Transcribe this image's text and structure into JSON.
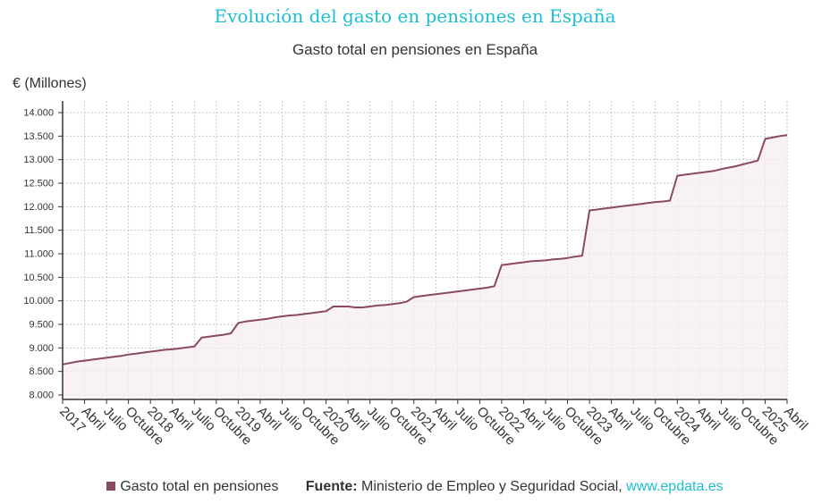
{
  "title": "Evolución del gasto en pensiones en España",
  "colors": {
    "title": "#1bbfd0",
    "series": "#8b4a5c",
    "area": "#f7eef1",
    "grid": "#c8c8c8",
    "link": "#1bbfd0"
  },
  "legend": {
    "label": "Gasto total en pensiones"
  },
  "source": {
    "label": "Fuente:",
    "text": "Ministerio de Empleo y Seguridad Social,",
    "link": "www.epdata.es"
  },
  "chart_data": {
    "type": "area",
    "title": "Gasto total en pensiones en España",
    "ylabel": "€ (Millones)",
    "xlabel": "",
    "ylim": [
      8000,
      14000
    ],
    "yticks": [
      8000,
      8500,
      9000,
      9500,
      10000,
      10500,
      11000,
      11500,
      12000,
      12500,
      13000,
      13500,
      14000
    ],
    "ytick_labels": [
      "8.000",
      "8.500",
      "9.000",
      "9.500",
      "10.000",
      "10.500",
      "11.000",
      "11.500",
      "12.000",
      "12.500",
      "13.000",
      "13.500",
      "14.000"
    ],
    "xticks": [
      "2017",
      "Abril",
      "Julio",
      "Octubre",
      "2018",
      "Abril",
      "Julio",
      "Octubre",
      "2019",
      "Abril",
      "Julio",
      "Octubre",
      "2020",
      "Abril",
      "Julio",
      "Octubre",
      "2021",
      "Abril",
      "Julio",
      "Octubre",
      "2022",
      "Abril",
      "Julio",
      "Octubre",
      "2023",
      "Abril",
      "Julio",
      "Octubre",
      "2024",
      "Abril",
      "Julio",
      "Octubre",
      "2025",
      "Abril"
    ],
    "grid": true,
    "legend_position": "bottom",
    "series": [
      {
        "name": "Gasto total en pensiones",
        "x": [
          "2017-01",
          "2017-02",
          "2017-03",
          "2017-04",
          "2017-05",
          "2017-06",
          "2017-07",
          "2017-08",
          "2017-09",
          "2017-10",
          "2017-11",
          "2017-12",
          "2018-01",
          "2018-02",
          "2018-03",
          "2018-04",
          "2018-05",
          "2018-06",
          "2018-07",
          "2018-08",
          "2018-09",
          "2018-10",
          "2018-11",
          "2018-12",
          "2019-01",
          "2019-02",
          "2019-03",
          "2019-04",
          "2019-05",
          "2019-06",
          "2019-07",
          "2019-08",
          "2019-09",
          "2019-10",
          "2019-11",
          "2019-12",
          "2020-01",
          "2020-02",
          "2020-03",
          "2020-04",
          "2020-05",
          "2020-06",
          "2020-07",
          "2020-08",
          "2020-09",
          "2020-10",
          "2020-11",
          "2020-12",
          "2021-01",
          "2021-02",
          "2021-03",
          "2021-04",
          "2021-05",
          "2021-06",
          "2021-07",
          "2021-08",
          "2021-09",
          "2021-10",
          "2021-11",
          "2021-12",
          "2022-01",
          "2022-02",
          "2022-03",
          "2022-04",
          "2022-05",
          "2022-06",
          "2022-07",
          "2022-08",
          "2022-09",
          "2022-10",
          "2022-11",
          "2022-12",
          "2023-01",
          "2023-02",
          "2023-03",
          "2023-04",
          "2023-05",
          "2023-06",
          "2023-07",
          "2023-08",
          "2023-09",
          "2023-10",
          "2023-11",
          "2023-12",
          "2024-01",
          "2024-02",
          "2024-03",
          "2024-04",
          "2024-05",
          "2024-06",
          "2024-07",
          "2024-08",
          "2024-09",
          "2024-10",
          "2024-11",
          "2024-12",
          "2025-01",
          "2025-02",
          "2025-03",
          "2025-04"
        ],
        "values": [
          8650,
          8680,
          8710,
          8730,
          8750,
          8770,
          8790,
          8810,
          8830,
          8860,
          8880,
          8900,
          8920,
          8940,
          8960,
          8970,
          8990,
          9010,
          9030,
          9220,
          9240,
          9260,
          9280,
          9310,
          9530,
          9560,
          9580,
          9600,
          9620,
          9650,
          9670,
          9690,
          9700,
          9720,
          9740,
          9760,
          9780,
          9880,
          9880,
          9880,
          9860,
          9860,
          9880,
          9900,
          9910,
          9930,
          9950,
          9980,
          10080,
          10100,
          10120,
          10140,
          10160,
          10180,
          10200,
          10220,
          10240,
          10260,
          10280,
          10310,
          10760,
          10780,
          10800,
          10820,
          10840,
          10850,
          10860,
          10880,
          10890,
          10910,
          10940,
          10960,
          11920,
          11940,
          11960,
          11980,
          12000,
          12020,
          12040,
          12060,
          12080,
          12100,
          12110,
          12130,
          12660,
          12680,
          12700,
          12720,
          12740,
          12760,
          12800,
          12830,
          12860,
          12900,
          12940,
          12980,
          13440,
          13470,
          13500,
          13520
        ]
      }
    ]
  }
}
